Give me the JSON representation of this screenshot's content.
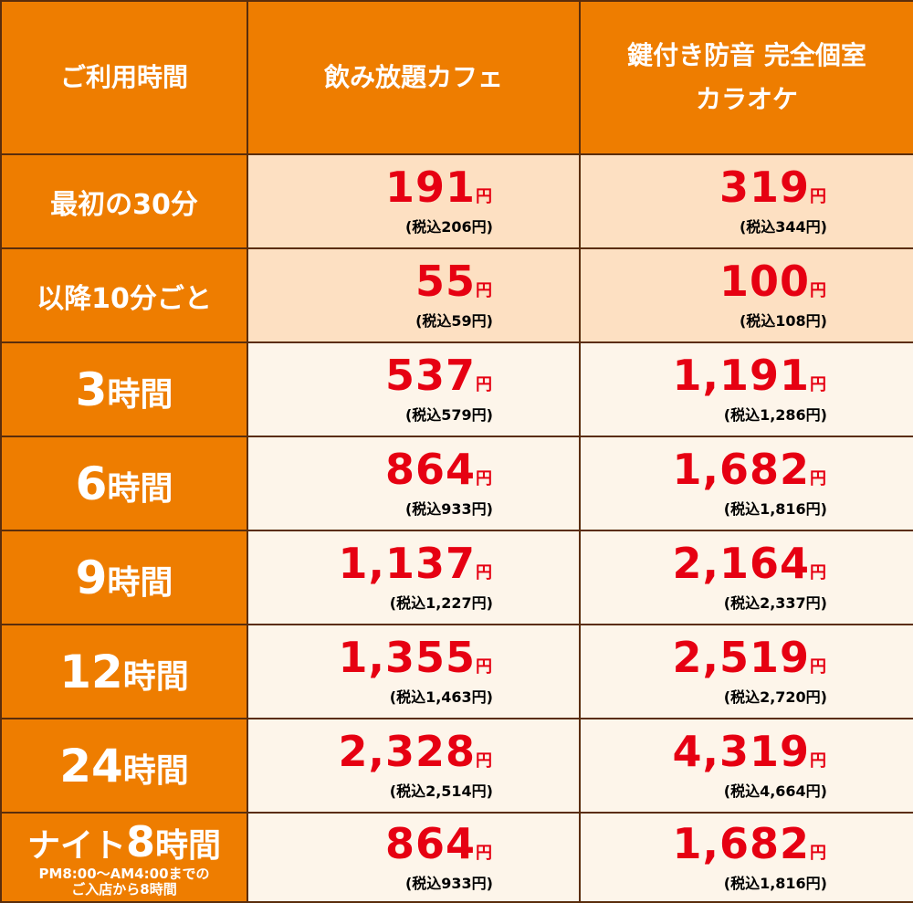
{
  "header": {
    "col_time": "ご利用時間",
    "col_cafe": "飲み放題カフェ",
    "col_karaoke_line1": "鍵付き防音 完全個室",
    "col_karaoke_line2": "カラオケ"
  },
  "rows": [
    {
      "label": "最初の30分",
      "cafe": "191",
      "cafe_tax": "(税込206円)",
      "karaoke": "319",
      "karaoke_tax": "(税込344円)"
    },
    {
      "label": "以降10分ごと",
      "cafe": "55",
      "cafe_tax": "(税込59円)",
      "karaoke": "100",
      "karaoke_tax": "(税込108円)"
    },
    {
      "num": "3",
      "unit": "時間",
      "cafe": "537",
      "cafe_tax": "(税込579円)",
      "karaoke": "1,191",
      "karaoke_tax": "(税込1,286円)"
    },
    {
      "num": "6",
      "unit": "時間",
      "cafe": "864",
      "cafe_tax": "(税込933円)",
      "karaoke": "1,682",
      "karaoke_tax": "(税込1,816円)"
    },
    {
      "num": "9",
      "unit": "時間",
      "cafe": "1,137",
      "cafe_tax": "(税込1,227円)",
      "karaoke": "2,164",
      "karaoke_tax": "(税込2,337円)"
    },
    {
      "num": "12",
      "unit": "時間",
      "cafe": "1,355",
      "cafe_tax": "(税込1,463円)",
      "karaoke": "2,519",
      "karaoke_tax": "(税込2,720円)"
    },
    {
      "num": "24",
      "unit": "時間",
      "cafe": "2,328",
      "cafe_tax": "(税込2,514円)",
      "karaoke": "4,319",
      "karaoke_tax": "(税込4,664円)"
    },
    {
      "prefix": "ナイト",
      "num": "8",
      "unit": "時間",
      "note1": "PM8:00～AM4:00までの",
      "note2": "ご入店から8時間",
      "cafe": "864",
      "cafe_tax": "(税込933円)",
      "karaoke": "1,682",
      "karaoke_tax": "(税込1,816円)"
    }
  ],
  "yen": "円",
  "colors": {
    "header_bg": "#ee7d00",
    "peach_bg": "#fde0c2",
    "cream_bg": "#fdf5ea",
    "price_red": "#e60012"
  }
}
